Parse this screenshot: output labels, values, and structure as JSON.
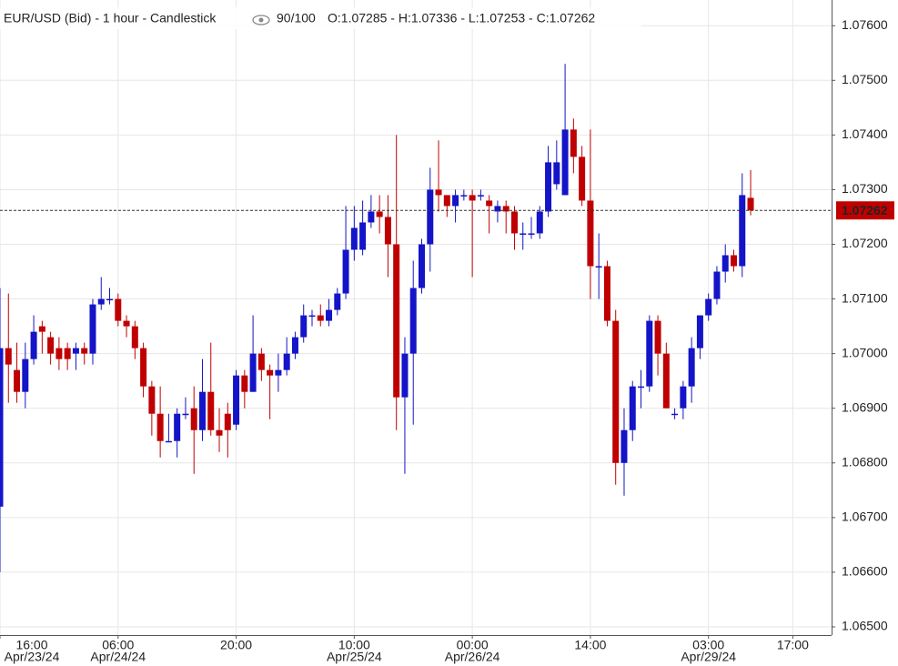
{
  "chart_data": {
    "type": "candlestick",
    "title": "EUR/USD (Bid) - 1 hour - Candlestick",
    "zoom": "90/100",
    "ohlc_summary": "O:1.07285 - H:1.07336 - L:1.07253 - C:1.07262",
    "up_color": "#1414c8",
    "down_color": "#c00000",
    "last_price": 1.07262,
    "grid": true,
    "ylim": [
      1.06485,
      1.07647
    ],
    "yticks": [
      {
        "value": 1.065,
        "label": "1.06500"
      },
      {
        "value": 1.066,
        "label": "1.06600"
      },
      {
        "value": 1.067,
        "label": "1.06700"
      },
      {
        "value": 1.068,
        "label": "1.06800"
      },
      {
        "value": 1.069,
        "label": "1.06900"
      },
      {
        "value": 1.07,
        "label": "1.07000"
      },
      {
        "value": 1.071,
        "label": "1.07100"
      },
      {
        "value": 1.072,
        "label": "1.07200"
      },
      {
        "value": 1.073,
        "label": "1.07300"
      },
      {
        "value": 1.074,
        "label": "1.07400"
      },
      {
        "value": 1.075,
        "label": "1.07500"
      },
      {
        "value": 1.076,
        "label": "1.07600"
      }
    ],
    "categories": [
      "16:00",
      null,
      null,
      null,
      null,
      null,
      null,
      null,
      null,
      null,
      null,
      null,
      null,
      null,
      "06:00",
      null,
      null,
      null,
      null,
      null,
      null,
      null,
      null,
      null,
      null,
      null,
      null,
      null,
      "20:00",
      null,
      null,
      null,
      null,
      null,
      null,
      null,
      null,
      null,
      null,
      null,
      null,
      null,
      "10:00",
      null,
      null,
      null,
      null,
      null,
      null,
      null,
      null,
      null,
      null,
      null,
      null,
      null,
      "00:00",
      null,
      null,
      null,
      null,
      null,
      null,
      null,
      null,
      null,
      null,
      null,
      null,
      null,
      "14:00",
      null,
      null,
      null,
      null,
      null,
      null,
      null,
      null,
      null,
      null,
      null,
      null,
      null,
      "03:00",
      null,
      null,
      null,
      null,
      null,
      null,
      null,
      null,
      null,
      "17:00"
    ],
    "dates": [
      "Apr/23/24",
      null,
      null,
      null,
      null,
      null,
      null,
      null,
      null,
      null,
      null,
      null,
      null,
      null,
      "Apr/24/24",
      null,
      null,
      null,
      null,
      null,
      null,
      null,
      null,
      null,
      null,
      null,
      null,
      null,
      null,
      null,
      null,
      null,
      null,
      null,
      null,
      null,
      null,
      null,
      null,
      null,
      null,
      null,
      "Apr/25/24",
      null,
      null,
      null,
      null,
      null,
      null,
      null,
      null,
      null,
      null,
      null,
      null,
      null,
      "Apr/26/24",
      null,
      null,
      null,
      null,
      null,
      null,
      null,
      null,
      null,
      null,
      null,
      null,
      null,
      null,
      null,
      null,
      null,
      null,
      null,
      null,
      null,
      null,
      null,
      null,
      null,
      null,
      null,
      "Apr/29/24",
      null,
      null,
      null,
      null,
      null,
      null,
      null,
      null,
      null,
      null
    ],
    "open": [
      1.0672,
      1.0701,
      1.0697,
      1.0693,
      1.0699,
      1.0705,
      1.0703,
      1.0701,
      1.0701,
      1.07,
      1.0701,
      1.07,
      1.0709,
      1.071,
      1.071,
      1.0706,
      1.0705,
      1.0701,
      1.0694,
      1.0689,
      1.0684,
      1.0684,
      1.0689,
      1.069,
      1.0686,
      1.0693,
      1.0686,
      1.0689,
      1.0687,
      1.0696,
      1.0693,
      1.07,
      1.0697,
      1.0696,
      1.0697,
      1.07,
      1.0703,
      1.0707,
      1.0707,
      1.0706,
      1.0708,
      1.0711,
      1.0719,
      1.0719,
      1.0724,
      1.0726,
      1.0725,
      1.072,
      1.0692,
      1.07,
      1.0712,
      1.072,
      1.073,
      1.0729,
      1.0727,
      1.0729,
      1.0729,
      1.0729,
      1.0728,
      1.0726,
      1.0727,
      1.0726,
      1.0722,
      1.0722,
      1.0722,
      1.0726,
      1.0731,
      1.0729,
      1.0741,
      1.0736,
      1.0728,
      1.0716,
      1.0716,
      1.0706,
      1.068,
      1.0686,
      1.0694,
      1.0694,
      1.0706,
      1.07,
      1.0689,
      1.069,
      1.0694,
      1.0701,
      1.0707,
      1.071,
      1.0715,
      1.0718,
      1.0716,
      1.07285,
      null,
      null,
      null,
      null,
      null
    ],
    "high": [
      1.0712,
      1.0711,
      1.0702,
      1.0702,
      1.0707,
      1.0706,
      1.0704,
      1.0703,
      1.0702,
      1.0702,
      1.0702,
      1.071,
      1.0714,
      1.0712,
      1.0711,
      1.0707,
      1.0706,
      1.0702,
      1.0695,
      1.0694,
      1.0689,
      1.069,
      1.0692,
      1.0694,
      1.0699,
      1.0702,
      1.069,
      1.0691,
      1.0697,
      1.0697,
      1.0707,
      1.0701,
      1.0698,
      1.07,
      1.0703,
      1.0704,
      1.0709,
      1.0708,
      1.0709,
      1.071,
      1.0712,
      1.0727,
      1.0727,
      1.0728,
      1.0729,
      1.0729,
      1.0729,
      1.074,
      1.0703,
      1.0717,
      1.0721,
      1.0734,
      1.0739,
      1.0729,
      1.073,
      1.073,
      1.073,
      1.073,
      1.0729,
      1.0728,
      1.0728,
      1.0727,
      1.0724,
      1.0725,
      1.0727,
      1.0738,
      1.0739,
      1.0753,
      1.0743,
      1.0738,
      1.0741,
      1.0722,
      1.0717,
      1.0708,
      1.069,
      1.0695,
      1.0697,
      1.0707,
      1.0707,
      1.0702,
      1.069,
      1.0695,
      1.0703,
      1.0707,
      1.0711,
      1.0716,
      1.072,
      1.0719,
      1.0733,
      1.07336,
      null,
      null,
      null,
      null,
      null
    ],
    "low": [
      1.066,
      1.0691,
      1.0691,
      1.069,
      1.0698,
      1.07,
      1.0698,
      1.0697,
      1.0697,
      1.0697,
      1.0698,
      1.0698,
      1.0708,
      1.0709,
      1.0705,
      1.0703,
      1.0699,
      1.0692,
      1.0685,
      1.0681,
      1.0684,
      1.0681,
      1.0688,
      1.0678,
      1.0684,
      1.0685,
      1.0682,
      1.0681,
      1.0686,
      1.069,
      1.0693,
      1.0695,
      1.0688,
      1.0693,
      1.0696,
      1.0699,
      1.0702,
      1.0705,
      1.0705,
      1.0705,
      1.0707,
      1.071,
      1.0717,
      1.0718,
      1.0723,
      1.0722,
      1.0714,
      1.0686,
      1.0678,
      1.0687,
      1.0711,
      1.0715,
      1.0726,
      1.0725,
      1.0724,
      1.0728,
      1.0714,
      1.0728,
      1.0722,
      1.0724,
      1.0722,
      1.0719,
      1.0719,
      1.0721,
      1.0721,
      1.0725,
      1.073,
      1.0729,
      1.0733,
      1.0727,
      1.071,
      1.071,
      1.0705,
      1.0676,
      1.0674,
      1.0684,
      1.069,
      1.0693,
      1.0696,
      1.069,
      1.0688,
      1.0688,
      1.0691,
      1.0699,
      1.0706,
      1.0709,
      1.0713,
      1.0715,
      1.0714,
      1.07253,
      null,
      null,
      null,
      null,
      null
    ],
    "close": [
      1.0701,
      1.0698,
      1.0693,
      1.0699,
      1.0704,
      1.0704,
      1.07,
      1.0699,
      1.0699,
      1.0701,
      1.07,
      1.0709,
      1.071,
      1.071,
      1.0706,
      1.0705,
      1.0701,
      1.0694,
      1.0689,
      1.0684,
      1.0684,
      1.0689,
      1.0689,
      1.0686,
      1.0693,
      1.0686,
      1.0685,
      1.0686,
      1.0696,
      1.0693,
      1.07,
      1.0697,
      1.0696,
      1.0697,
      1.07,
      1.0703,
      1.0707,
      1.0707,
      1.0706,
      1.0708,
      1.0711,
      1.0719,
      1.0723,
      1.0724,
      1.0726,
      1.0725,
      1.072,
      1.0692,
      1.07,
      1.0712,
      1.072,
      1.073,
      1.0729,
      1.0727,
      1.0729,
      1.0729,
      1.0728,
      1.0729,
      1.0727,
      1.0727,
      1.0726,
      1.0722,
      1.0722,
      1.0722,
      1.0726,
      1.0735,
      1.0735,
      1.0741,
      1.0736,
      1.0728,
      1.0716,
      1.0716,
      1.0706,
      1.068,
      1.0686,
      1.0694,
      1.0694,
      1.0706,
      1.07,
      1.069,
      1.0689,
      1.0694,
      1.0701,
      1.0707,
      1.071,
      1.0715,
      1.0718,
      1.0716,
      1.0729,
      1.07262,
      null,
      null,
      null,
      null,
      null
    ]
  }
}
